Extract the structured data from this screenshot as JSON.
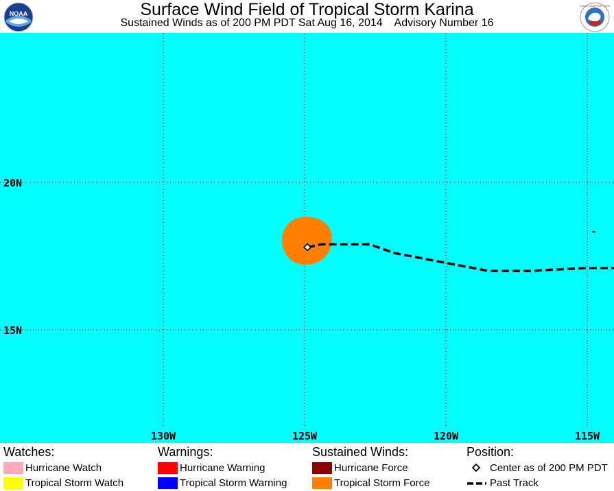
{
  "header": {
    "title": "Surface Wind Field of Tropical Storm Karina",
    "subtitle": "Sustained Winds as of 200 PM PDT Sat Aug 16, 2014    Advisory Number 16",
    "left_logo": "noaa-logo",
    "left_logo_text": "NOAA",
    "right_logo": "national-weather-service-logo",
    "right_logo_text": "NATIONAL WEATHER SERVICE"
  },
  "map": {
    "ocean_color": "#00ffff",
    "lat_labels": [
      "20N",
      "15N"
    ],
    "lon_labels": [
      "130W",
      "125W",
      "120W",
      "115W"
    ],
    "storm": {
      "name": "Karina",
      "center_lat": 17.8,
      "center_lon": -124.9,
      "tropical_storm_force_color": "#ff8000"
    },
    "past_track": [
      [
        -124.9,
        17.8
      ],
      [
        -124.4,
        17.9
      ],
      [
        -123.5,
        17.9
      ],
      [
        -122.7,
        17.9
      ],
      [
        -121.8,
        17.6
      ],
      [
        -120.7,
        17.4
      ],
      [
        -119.6,
        17.2
      ],
      [
        -118.5,
        17.0
      ],
      [
        -117.0,
        17.0
      ],
      [
        -115.0,
        17.1
      ],
      [
        -114.0,
        17.1
      ]
    ]
  },
  "legend": {
    "watches": {
      "heading": "Watches:",
      "items": [
        {
          "label": "Hurricane Watch",
          "color": "#ffaabb"
        },
        {
          "label": "Tropical Storm Watch",
          "color": "#ffff00"
        }
      ]
    },
    "warnings": {
      "heading": "Warnings:",
      "items": [
        {
          "label": "Hurricane Warning",
          "color": "#ff0000"
        },
        {
          "label": "Tropical Storm Warning",
          "color": "#0000ff"
        }
      ]
    },
    "winds": {
      "heading": "Sustained Winds:",
      "items": [
        {
          "label": "Hurricane Force",
          "color": "#8b0000"
        },
        {
          "label": "Tropical Storm Force",
          "color": "#ff8000"
        }
      ]
    },
    "position": {
      "heading": "Position:",
      "items": [
        {
          "label": "Center as of 200 PM PDT",
          "icon": "diamond-icon"
        },
        {
          "label": "Past Track",
          "icon": "dashed-line-icon"
        }
      ]
    }
  }
}
